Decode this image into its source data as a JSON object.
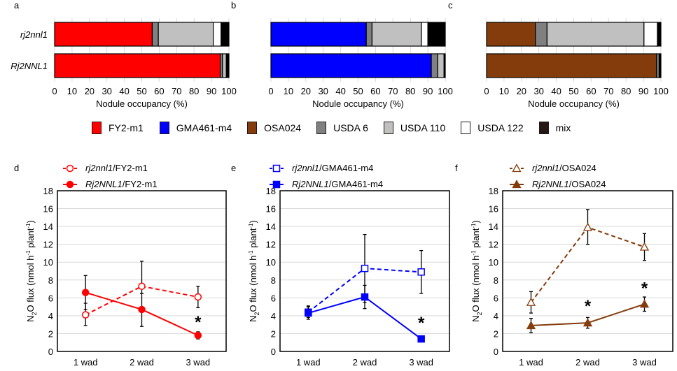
{
  "occupancy_legend": [
    {
      "name": "FY2-m1",
      "color": "#ff0000"
    },
    {
      "name": "GMA461-m4",
      "color": "#0000ff"
    },
    {
      "name": "OSA024",
      "color": "#843c0c"
    },
    {
      "name": "USDA 6",
      "color": "#808080"
    },
    {
      "name": "USDA 110",
      "color": "#c0c0c0"
    },
    {
      "name": "USDA 122",
      "color": "#ffffff"
    },
    {
      "name": "mix",
      "color": "#231815"
    }
  ],
  "chart_data": [
    {
      "panel": "a",
      "type": "bar",
      "orientation": "horizontal-stacked",
      "categories": [
        "rj2nnl1",
        "Rj2NNL1"
      ],
      "xlabel": "Nodule occupancy (%)",
      "xlim": [
        0,
        100
      ],
      "xticks": [
        "0",
        "10",
        "20",
        "30",
        "40",
        "50",
        "60",
        "70",
        "80",
        "90",
        "100"
      ],
      "grid": true,
      "series": [
        {
          "name": "FY2-m1",
          "color": "#ff0000",
          "values": [
            56,
            95
          ]
        },
        {
          "name": "USDA 6",
          "color": "#808080",
          "values": [
            3.5,
            1.3
          ]
        },
        {
          "name": "USDA 110",
          "color": "#c0c0c0",
          "values": [
            31.5,
            2.2
          ]
        },
        {
          "name": "USDA 122",
          "color": "#ffffff",
          "values": [
            4.5,
            0
          ]
        },
        {
          "name": "mix",
          "color": "#000000",
          "values": [
            4.5,
            1.5
          ]
        }
      ]
    },
    {
      "panel": "b",
      "type": "bar",
      "orientation": "horizontal-stacked",
      "categories": [
        "rj2nnl1",
        "Rj2NNL1"
      ],
      "xlabel": "Nodule occupancy (%)",
      "xlim": [
        0,
        100
      ],
      "xticks": [
        "0",
        "10",
        "20",
        "30",
        "40",
        "50",
        "60",
        "70",
        "80",
        "90",
        "100"
      ],
      "grid": true,
      "series": [
        {
          "name": "GMA461-m4",
          "color": "#0000ff",
          "values": [
            54.7,
            92
          ]
        },
        {
          "name": "USDA 6",
          "color": "#808080",
          "values": [
            3.3,
            3.7
          ]
        },
        {
          "name": "USDA 110",
          "color": "#c0c0c0",
          "values": [
            28.3,
            3.6
          ]
        },
        {
          "name": "USDA 122",
          "color": "#ffffff",
          "values": [
            3.7,
            0
          ]
        },
        {
          "name": "mix",
          "color": "#000000",
          "values": [
            10,
            0.7
          ]
        }
      ]
    },
    {
      "panel": "c",
      "type": "bar",
      "orientation": "horizontal-stacked",
      "categories": [
        "rj2nnl1",
        "Rj2NNL1"
      ],
      "xlabel": "Nodule occupancy (%)",
      "xlim": [
        0,
        100
      ],
      "xticks": [
        "0",
        "10",
        "20",
        "30",
        "40",
        "50",
        "60",
        "70",
        "80",
        "90",
        "100"
      ],
      "grid": true,
      "series": [
        {
          "name": "OSA024",
          "color": "#843c0c",
          "values": [
            28,
            97.5
          ]
        },
        {
          "name": "USDA 6",
          "color": "#808080",
          "values": [
            6.7,
            1.5
          ]
        },
        {
          "name": "USDA 110",
          "color": "#c0c0c0",
          "values": [
            55.6,
            0
          ]
        },
        {
          "name": "USDA 122",
          "color": "#ffffff",
          "values": [
            7.7,
            0
          ]
        },
        {
          "name": "mix",
          "color": "#000000",
          "values": [
            2,
            1
          ]
        }
      ]
    },
    {
      "panel": "d",
      "type": "line",
      "x": [
        "1 wad",
        "2 wad",
        "3 wad"
      ],
      "ylabel": "N2O flux (nmol h-1 plant-1)",
      "ylim": [
        0,
        18
      ],
      "yticks": [
        "0",
        "2",
        "4",
        "6",
        "8",
        "10",
        "12",
        "14",
        "16",
        "18"
      ],
      "grid": true,
      "legend": "top-left",
      "color": "#ff0000",
      "series": [
        {
          "name": "rj2nnl1/FY2-m1",
          "genotype": "rj2nnl1",
          "strain": "/FY2-m1",
          "style": "dashed",
          "marker": "circle-open",
          "values": [
            4.1,
            7.3,
            6.1
          ],
          "err_low": [
            2.9,
            6.5,
            4.9
          ],
          "err_high": [
            5.4,
            10.1,
            7.3
          ]
        },
        {
          "name": "Rj2NNL1/FY2-m1",
          "genotype": "Rj2NNL1",
          "strain": "/FY2-m1",
          "style": "solid",
          "marker": "circle-filled",
          "values": [
            6.6,
            4.7,
            1.8
          ],
          "err_low": [
            4.7,
            2.8,
            1.4
          ],
          "err_high": [
            8.5,
            6.5,
            2.2
          ]
        }
      ],
      "annotations": [
        {
          "text": "*",
          "x": "3 wad",
          "y": 3.3
        }
      ]
    },
    {
      "panel": "e",
      "type": "line",
      "x": [
        "1 wad",
        "2 wad",
        "3 wad"
      ],
      "ylabel": "N2O flux (nmol h-1 plant-1)",
      "ylim": [
        0,
        18
      ],
      "yticks": [
        "0",
        "2",
        "4",
        "6",
        "8",
        "10",
        "12",
        "14",
        "16",
        "18"
      ],
      "grid": true,
      "legend": "top-left",
      "color": "#0000ff",
      "series": [
        {
          "name": "rj2nnl1/GMA461-m4",
          "genotype": "rj2nnl1",
          "strain": "/GMA461-m4",
          "style": "dashed",
          "marker": "square-open",
          "values": [
            4.4,
            9.3,
            8.9
          ],
          "err_low": [
            3.8,
            5.5,
            6.5
          ],
          "err_high": [
            5.1,
            13.1,
            11.3
          ]
        },
        {
          "name": "Rj2NNL1/GMA461-m4",
          "genotype": "Rj2NNL1",
          "strain": "/GMA461-m4",
          "style": "solid",
          "marker": "square-filled",
          "values": [
            4.3,
            6.1,
            1.4
          ],
          "err_low": [
            3.6,
            4.8,
            1.4
          ],
          "err_high": [
            5.0,
            7.4,
            1.4
          ]
        }
      ],
      "annotations": [
        {
          "text": "*",
          "x": "3 wad",
          "y": 3.2
        }
      ]
    },
    {
      "panel": "f",
      "type": "line",
      "x": [
        "1 wad",
        "2 wad",
        "3 wad"
      ],
      "ylabel": "N2O flux (nmol h-1 plant-1)",
      "ylim": [
        0,
        18
      ],
      "yticks": [
        "0",
        "2",
        "4",
        "6",
        "8",
        "10",
        "12",
        "14",
        "16",
        "18"
      ],
      "grid": true,
      "legend": "top-left",
      "color": "#843c0c",
      "series": [
        {
          "name": "rj2nnl1/OSA024",
          "genotype": "rj2nnl1",
          "strain": "/OSA024",
          "style": "dashed",
          "marker": "triangle-open",
          "values": [
            5.5,
            13.9,
            11.7
          ],
          "err_low": [
            4.3,
            12.0,
            10.2
          ],
          "err_high": [
            6.7,
            15.9,
            13.2
          ]
        },
        {
          "name": "Rj2NNL1/OSA024",
          "genotype": "Rj2NNL1",
          "strain": "/OSA024",
          "style": "solid",
          "marker": "triangle-filled",
          "values": [
            2.9,
            3.2,
            5.3
          ],
          "err_low": [
            2.1,
            2.6,
            4.5
          ],
          "err_high": [
            3.7,
            3.8,
            6.1
          ]
        }
      ],
      "annotations": [
        {
          "text": "*",
          "x": "2 wad",
          "y": 5.1
        },
        {
          "text": "*",
          "x": "3 wad",
          "y": 7.1
        }
      ]
    }
  ]
}
